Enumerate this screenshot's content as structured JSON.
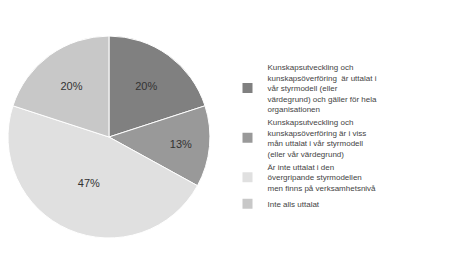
{
  "chart_data": {
    "type": "pie",
    "categories": [
      "Kunskapsutveckling och\nkunskapsöverföring  är uttalat i\nvår styrmodell (eller\nvärdegrund) och gäller för hela\norganisationen",
      "Kunskapsutveckling och\nkunskapsöverföring är i viss\nmån uttalat i vår styrmodell\n(eller vår värdegrund)",
      "Är inte uttalat i den\növergripande styrmodellen\nmen finns på verksamhetsnivå",
      "Inte alls uttalat"
    ],
    "values": [
      20,
      13,
      47,
      20
    ],
    "value_labels": [
      "20%",
      "13%",
      "47%",
      "20%"
    ],
    "colors": [
      "#808080",
      "#999999",
      "#e0e0e0",
      "#c8c8c8"
    ],
    "data_labels": true,
    "legend": "right"
  }
}
